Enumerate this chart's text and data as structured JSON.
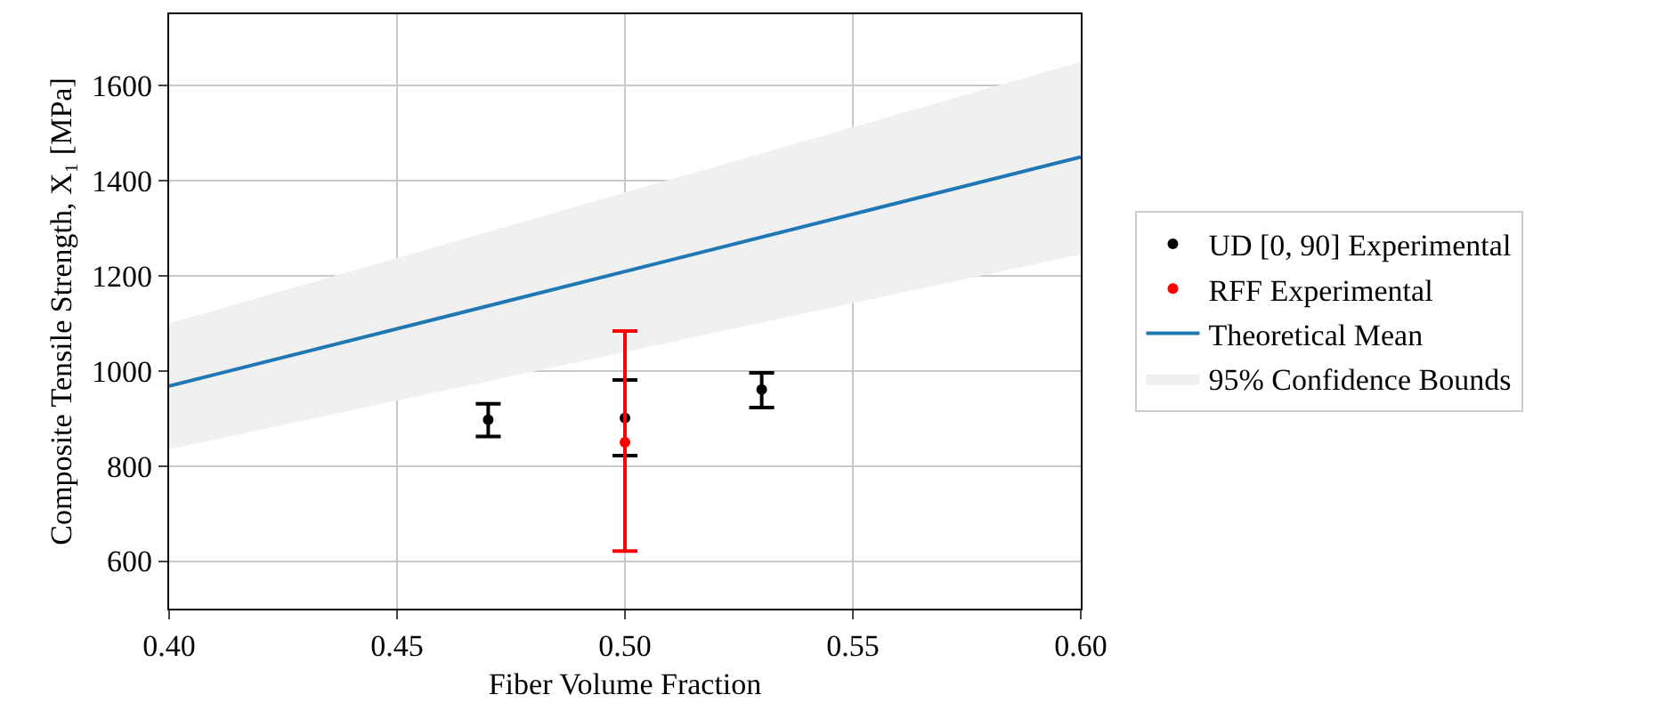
{
  "chart_data": {
    "type": "scatter",
    "xlabel": "Fiber Volume Fraction",
    "ylabel": "Composite Tensile Strength, X₁ [MPa]",
    "xlim": [
      0.4,
      0.6
    ],
    "xticks": [
      {
        "value": 0.4,
        "label": "0.40"
      },
      {
        "value": 0.45,
        "label": "0.45"
      },
      {
        "value": 0.5,
        "label": "0.50"
      },
      {
        "value": 0.55,
        "label": "0.55"
      },
      {
        "value": 0.6,
        "label": "0.60"
      }
    ],
    "ylim": [
      500,
      1750
    ],
    "yticks": [
      600,
      800,
      1000,
      1200,
      1400,
      1600
    ],
    "grid": true,
    "legend": "right",
    "marker": "circle",
    "series": [
      {
        "name": "UD [0, 90] Experimental",
        "color": "#000000",
        "x": [
          0.47,
          0.5,
          0.53
        ],
        "values": [
          897,
          901,
          961
        ],
        "errors": [
          [
            862,
            931
          ],
          [
            822,
            981
          ],
          [
            923,
            996
          ]
        ]
      },
      {
        "name": "RFF Experimental",
        "type": "scatter",
        "color": "#ff0000",
        "x": [
          0.5
        ],
        "values": [
          850
        ],
        "errors": [
          [
            621,
            1084
          ]
        ]
      },
      {
        "name": "Theoretical Mean",
        "type": "line",
        "marker": "none",
        "color": "#1f77b4",
        "x": [
          0.4,
          0.6
        ],
        "values": [
          968,
          1450
        ]
      },
      {
        "name": "95% Confidence Bounds",
        "type": "area",
        "color": "#f0f0f0",
        "x": [
          0.4,
          0.6
        ],
        "values": [
          null,
          null
        ],
        "lower": [
          835,
          1245
        ],
        "upper": [
          1100,
          1650
        ]
      }
    ]
  }
}
